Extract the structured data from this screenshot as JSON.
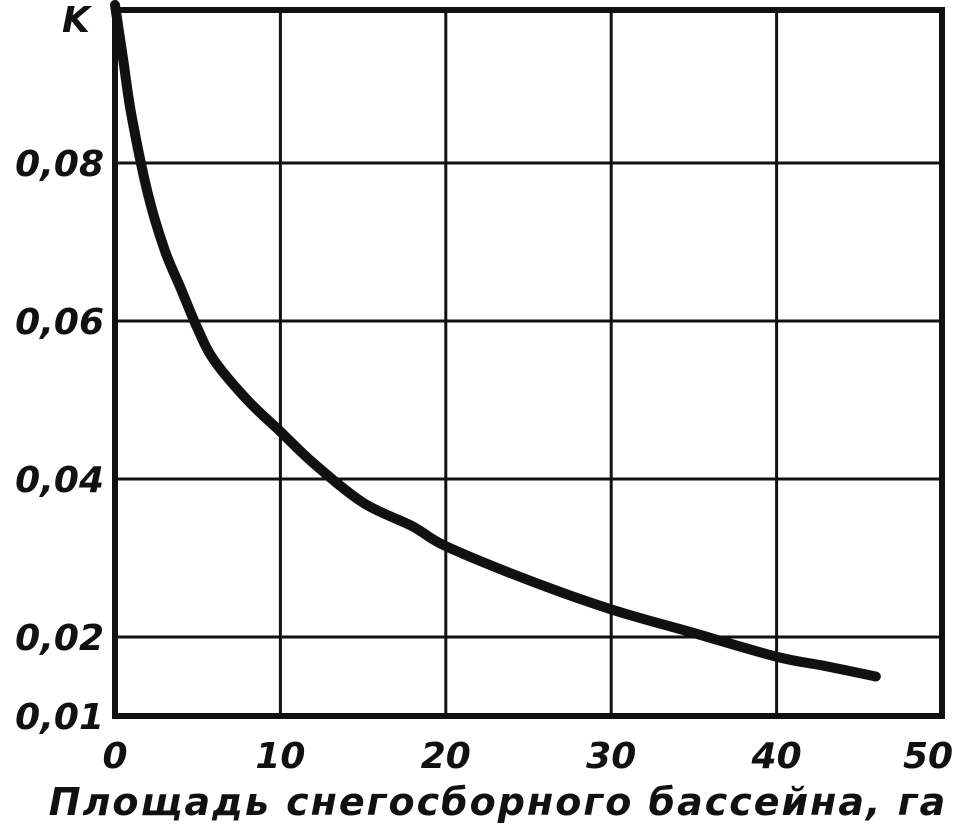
{
  "chart_data": {
    "type": "line",
    "title": "",
    "xlabel": "Площадь снегосборного бассейна, га",
    "ylabel": "K",
    "xlim": [
      0,
      50
    ],
    "ylim": [
      0.01,
      0.1
    ],
    "xticks": [
      {
        "value": 0,
        "label": "0"
      },
      {
        "value": 10,
        "label": "10"
      },
      {
        "value": 20,
        "label": "20"
      },
      {
        "value": 30,
        "label": "30"
      },
      {
        "value": 40,
        "label": "40"
      },
      {
        "value": 50,
        "label": "50"
      }
    ],
    "yticks": [
      {
        "value": 0.01,
        "label": "0,01"
      },
      {
        "value": 0.02,
        "label": "0,02"
      },
      {
        "value": 0.04,
        "label": "0,04"
      },
      {
        "value": 0.06,
        "label": "0,06"
      },
      {
        "value": 0.08,
        "label": "0,08"
      }
    ],
    "grid": true,
    "series": [
      {
        "x": [
          0,
          0.5,
          1,
          2,
          3,
          4,
          5,
          6,
          8,
          10,
          12,
          15,
          18,
          20,
          25,
          30,
          35,
          40,
          43,
          46
        ],
        "values": [
          0.1,
          0.093,
          0.086,
          0.076,
          0.069,
          0.064,
          0.059,
          0.055,
          0.05,
          0.046,
          0.042,
          0.037,
          0.034,
          0.0315,
          0.0272,
          0.0235,
          0.0205,
          0.0175,
          0.0163,
          0.015
        ]
      }
    ]
  }
}
